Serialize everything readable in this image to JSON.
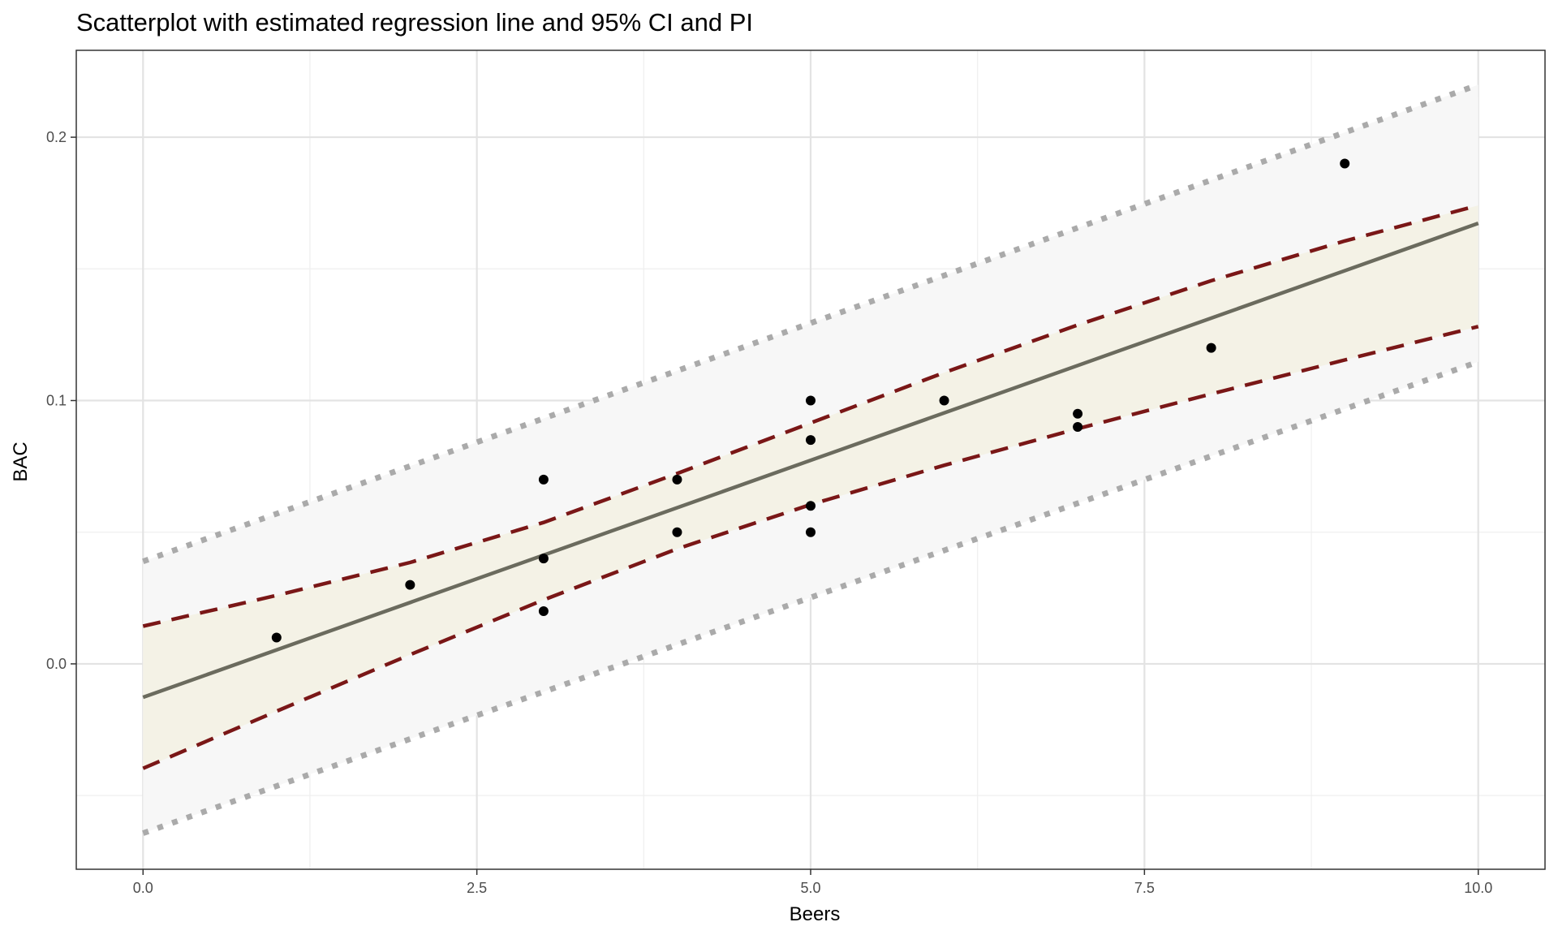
{
  "chart_data": {
    "type": "scatter",
    "title": "Scatterplot with estimated regression line and 95% CI and PI",
    "xlabel": "Beers",
    "ylabel": "BAC",
    "xlim": [
      -0.5,
      10.5
    ],
    "ylim": [
      -0.078,
      0.233
    ],
    "x_ticks": [
      0,
      2.5,
      5,
      7.5,
      10
    ],
    "x_tick_labels": [
      "0.0",
      "2.5",
      "5.0",
      "7.5",
      "10.0"
    ],
    "y_ticks": [
      0,
      0.1,
      0.2
    ],
    "y_tick_labels": [
      "0.0",
      "0.1",
      "0.2"
    ],
    "grid": true,
    "points": [
      {
        "x": 1,
        "y": 0.01
      },
      {
        "x": 2,
        "y": 0.03
      },
      {
        "x": 3,
        "y": 0.07
      },
      {
        "x": 3,
        "y": 0.04
      },
      {
        "x": 3,
        "y": 0.02
      },
      {
        "x": 4,
        "y": 0.07
      },
      {
        "x": 4,
        "y": 0.05
      },
      {
        "x": 5,
        "y": 0.1
      },
      {
        "x": 5,
        "y": 0.085
      },
      {
        "x": 5,
        "y": 0.06
      },
      {
        "x": 5,
        "y": 0.05
      },
      {
        "x": 6,
        "y": 0.1
      },
      {
        "x": 7,
        "y": 0.095
      },
      {
        "x": 7,
        "y": 0.09
      },
      {
        "x": 8,
        "y": 0.12
      },
      {
        "x": 9,
        "y": 0.19
      }
    ],
    "regression": {
      "intercept": -0.0127,
      "slope": 0.018
    },
    "confidence_band": {
      "x": [
        0,
        1,
        2,
        3,
        4,
        5,
        6,
        7,
        8,
        9,
        10
      ],
      "lower": [
        -0.0397,
        -0.018,
        0.0035,
        0.0243,
        0.0437,
        0.0605,
        0.0754,
        0.0893,
        0.1025,
        0.1154,
        0.1281
      ],
      "upper": [
        0.0143,
        0.026,
        0.0385,
        0.0537,
        0.0723,
        0.0915,
        0.1106,
        0.1287,
        0.1455,
        0.1606,
        0.1741
      ]
    },
    "prediction_band": {
      "x": [
        0,
        10
      ],
      "lower": [
        -0.0643,
        0.1147
      ],
      "upper": [
        0.0389,
        0.2199
      ]
    },
    "colors": {
      "points": "#000000",
      "regression_line": "#6b6b5e",
      "confidence_lines": "#7a1717",
      "prediction_lines": "#aaaaaa",
      "confidence_fill": "#f4f2e6",
      "prediction_fill": "#f7f7f7",
      "grid_major": "#e3e3e3",
      "grid_minor": "#efefef",
      "panel_border": "#333333"
    }
  }
}
